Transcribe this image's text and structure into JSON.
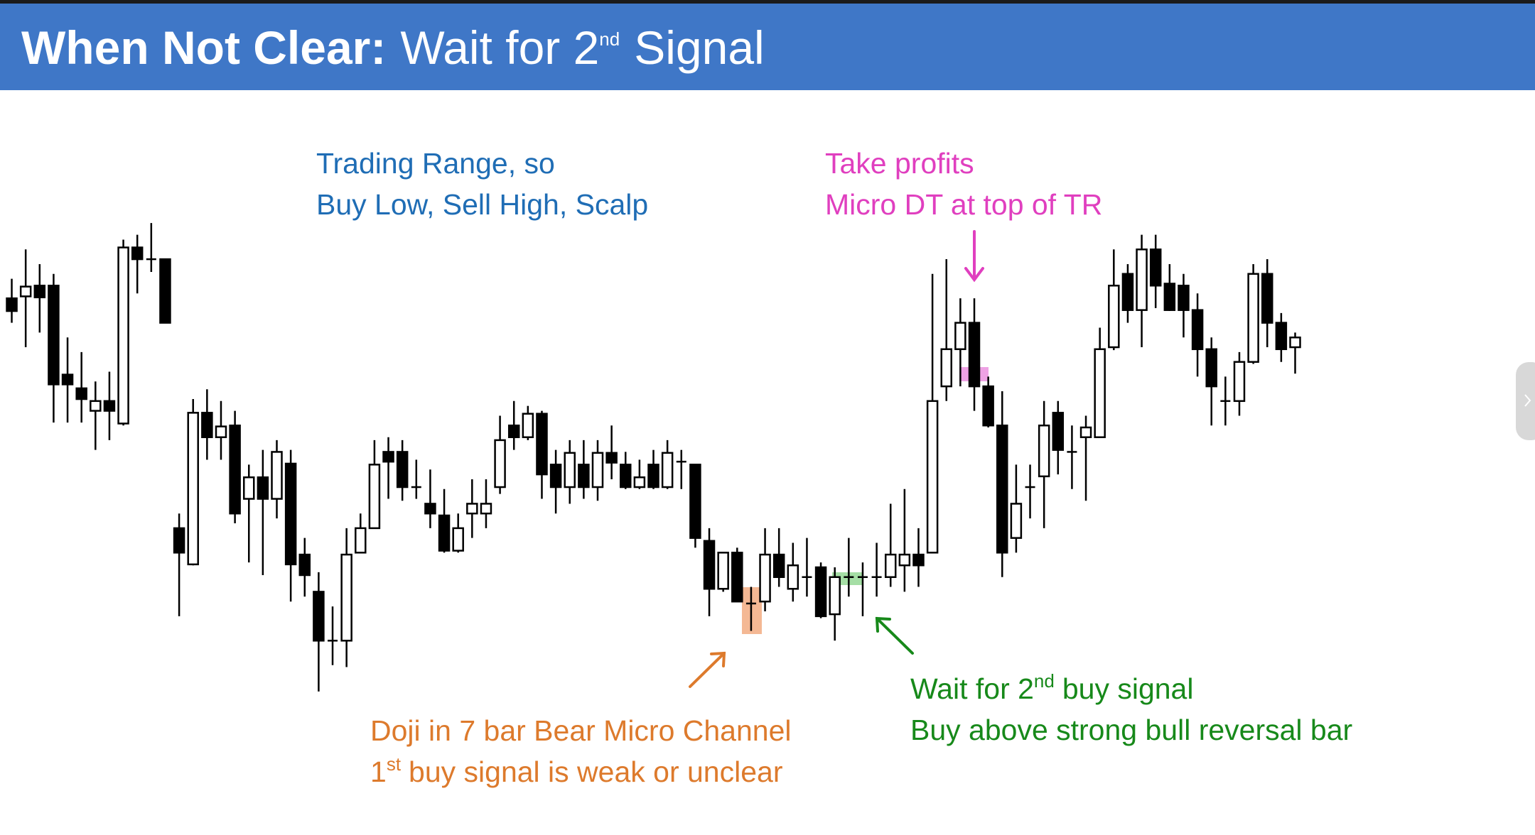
{
  "chart_data": {
    "type": "candlestick",
    "title": {
      "main": "When Not Clear:",
      "rest": "Wait for 2",
      "sup": "nd",
      "end": "Signal"
    },
    "annotations": [
      {
        "color": "#1f6db5",
        "lines": [
          {
            "text": "Trading Range, so"
          },
          {
            "text": "Buy Low, Sell High, Scalp"
          }
        ]
      },
      {
        "color": "#e03fbf",
        "lines": [
          {
            "text": "Take profits"
          },
          {
            "text": "Micro DT at top of TR"
          }
        ]
      },
      {
        "color": "#dd7a2c",
        "lines": [
          {
            "text": "Doji in 7 bar Bear Micro Channel"
          },
          {
            "text": "1",
            "sup": "st",
            "after": "buy signal is weak or unclear"
          }
        ]
      },
      {
        "color": "#17891a",
        "lines": [
          {
            "text": "Wait for 2",
            "sup": "nd",
            "after": "buy signal"
          },
          {
            "text": "Buy above strong bull reversal bar"
          }
        ]
      }
    ],
    "ylim": [
      100,
      650
    ],
    "up_color": "#ffffff",
    "down_color": "#000000",
    "open": [
      547,
      549,
      560,
      560,
      469,
      455,
      432,
      442,
      419,
      599,
      587,
      587,
      312,
      275,
      430,
      405,
      417,
      342,
      364,
      342,
      378,
      285,
      247,
      197,
      197,
      287,
      312,
      390,
      390,
      354,
      337,
      325,
      289,
      327,
      327,
      354,
      417,
      405,
      429,
      377,
      354,
      377,
      354,
      389,
      377,
      354,
      377,
      354,
      380,
      377,
      299,
      250,
      287,
      235,
      237,
      285,
      250,
      262,
      272,
      224,
      262,
      262,
      262,
      262,
      274,
      285,
      287,
      457,
      495,
      522,
      457,
      417,
      302,
      354,
      365,
      430,
      390,
      405,
      405,
      497,
      572,
      535,
      597,
      562,
      560,
      535,
      495,
      442,
      442,
      482,
      572,
      522,
      497
    ],
    "high": [
      567,
      597,
      582,
      572,
      507,
      492,
      462,
      472,
      607,
      612,
      624,
      587,
      327,
      444,
      454,
      442,
      432,
      377,
      392,
      402,
      392,
      302,
      267,
      232,
      312,
      327,
      402,
      405,
      402,
      382,
      372,
      352,
      327,
      362,
      362,
      427,
      442,
      437,
      432,
      392,
      402,
      402,
      402,
      417,
      390,
      382,
      392,
      402,
      392,
      377,
      312,
      287,
      292,
      252,
      312,
      312,
      297,
      302,
      277,
      272,
      302,
      277,
      297,
      337,
      352,
      312,
      572,
      587,
      547,
      547,
      467,
      452,
      377,
      377,
      442,
      442,
      417,
      427,
      517,
      597,
      582,
      612,
      612,
      582,
      572,
      552,
      507,
      467,
      492,
      582,
      587,
      532,
      512
    ],
    "low": [
      522,
      497,
      512,
      420,
      420,
      420,
      392,
      402,
      417,
      552,
      574,
      522,
      222,
      274,
      382,
      382,
      317,
      277,
      264,
      322,
      237,
      242,
      145,
      172,
      170,
      287,
      312,
      342,
      340,
      342,
      312,
      287,
      287,
      302,
      312,
      347,
      392,
      402,
      342,
      327,
      337,
      342,
      340,
      362,
      352,
      352,
      352,
      352,
      352,
      292,
      222,
      247,
      237,
      207,
      227,
      252,
      237,
      242,
      220,
      197,
      242,
      222,
      242,
      252,
      247,
      252,
      287,
      442,
      457,
      432,
      415,
      262,
      287,
      322,
      312,
      367,
      352,
      340,
      405,
      494,
      522,
      497,
      537,
      534,
      507,
      467,
      417,
      417,
      427,
      480,
      497,
      482,
      470
    ],
    "close": [
      534,
      559,
      548,
      459,
      459,
      444,
      442,
      432,
      599,
      587,
      587,
      522,
      287,
      430,
      405,
      416,
      327,
      364,
      342,
      390,
      275,
      264,
      197,
      197,
      285,
      312,
      377,
      380,
      354,
      354,
      327,
      289,
      312,
      337,
      337,
      402,
      405,
      429,
      367,
      354,
      389,
      354,
      389,
      379,
      354,
      364,
      354,
      389,
      380,
      302,
      250,
      287,
      237,
      235,
      285,
      262,
      274,
      262,
      222,
      262,
      262,
      262,
      262,
      285,
      285,
      274,
      442,
      495,
      522,
      457,
      417,
      287,
      337,
      354,
      417,
      392,
      390,
      415,
      495,
      560,
      535,
      597,
      560,
      535,
      535,
      495,
      457,
      442,
      482,
      572,
      522,
      495,
      507
    ]
  }
}
